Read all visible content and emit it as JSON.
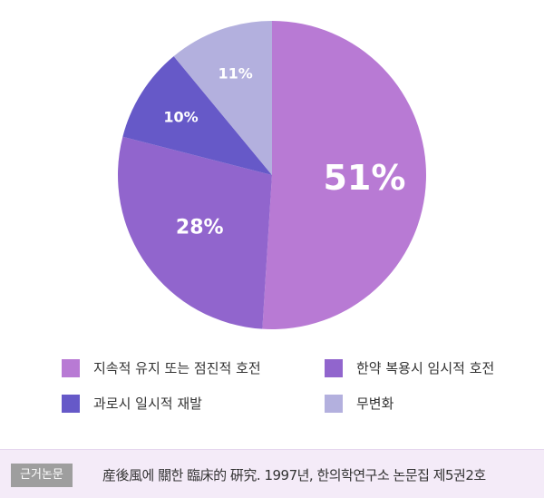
{
  "chart_data": {
    "type": "pie",
    "slices": [
      {
        "label": "지속적 유지 또는 점진적 호전",
        "value": 51,
        "display": "51%",
        "color": "#b87ad4"
      },
      {
        "label": "한약 복용시 임시적 호전",
        "value": 28,
        "display": "28%",
        "color": "#9165cd"
      },
      {
        "label": "과로시 일시적 재발",
        "value": 10,
        "display": "10%",
        "color": "#6659c8"
      },
      {
        "label": "무변화",
        "value": 11,
        "display": "11%",
        "color": "#b3b0de"
      }
    ]
  },
  "legend": {
    "items": [
      {
        "label": "지속적 유지 또는 점진적 호전",
        "color": "#b87ad4"
      },
      {
        "label": "한약 복용시 임시적 호전",
        "color": "#9165cd"
      },
      {
        "label": "과로시 일시적 재발",
        "color": "#6659c8"
      },
      {
        "label": "무변화",
        "color": "#b3b0de"
      }
    ]
  },
  "source": {
    "tag": "근거논문",
    "text": "産後風에 關한 臨床的 硏究. 1997년, 한의학연구소 논문집 제5권2호"
  }
}
